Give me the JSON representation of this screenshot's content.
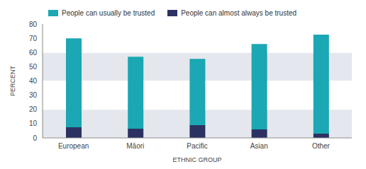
{
  "chart_data": {
    "type": "bar",
    "stacked": true,
    "grid": true,
    "legend": "upper left",
    "xlabel": "ETHNIC GROUP",
    "ylabel": "PERCENT",
    "categories": [
      "European",
      "Māori",
      "Pacific",
      "Asian",
      "Other"
    ],
    "series": [
      {
        "name": "People can almost always be trusted",
        "color": "#2b3262",
        "values": [
          7.5,
          6.5,
          9,
          6,
          3
        ]
      },
      {
        "name": "People can usually be trusted",
        "color": "#1ba7b3",
        "values": [
          62.5,
          50.5,
          46.5,
          60,
          69.5
        ]
      }
    ],
    "ylim": [
      0,
      80
    ],
    "yticks": [
      0,
      10,
      20,
      30,
      40,
      50,
      60,
      70,
      80
    ]
  }
}
